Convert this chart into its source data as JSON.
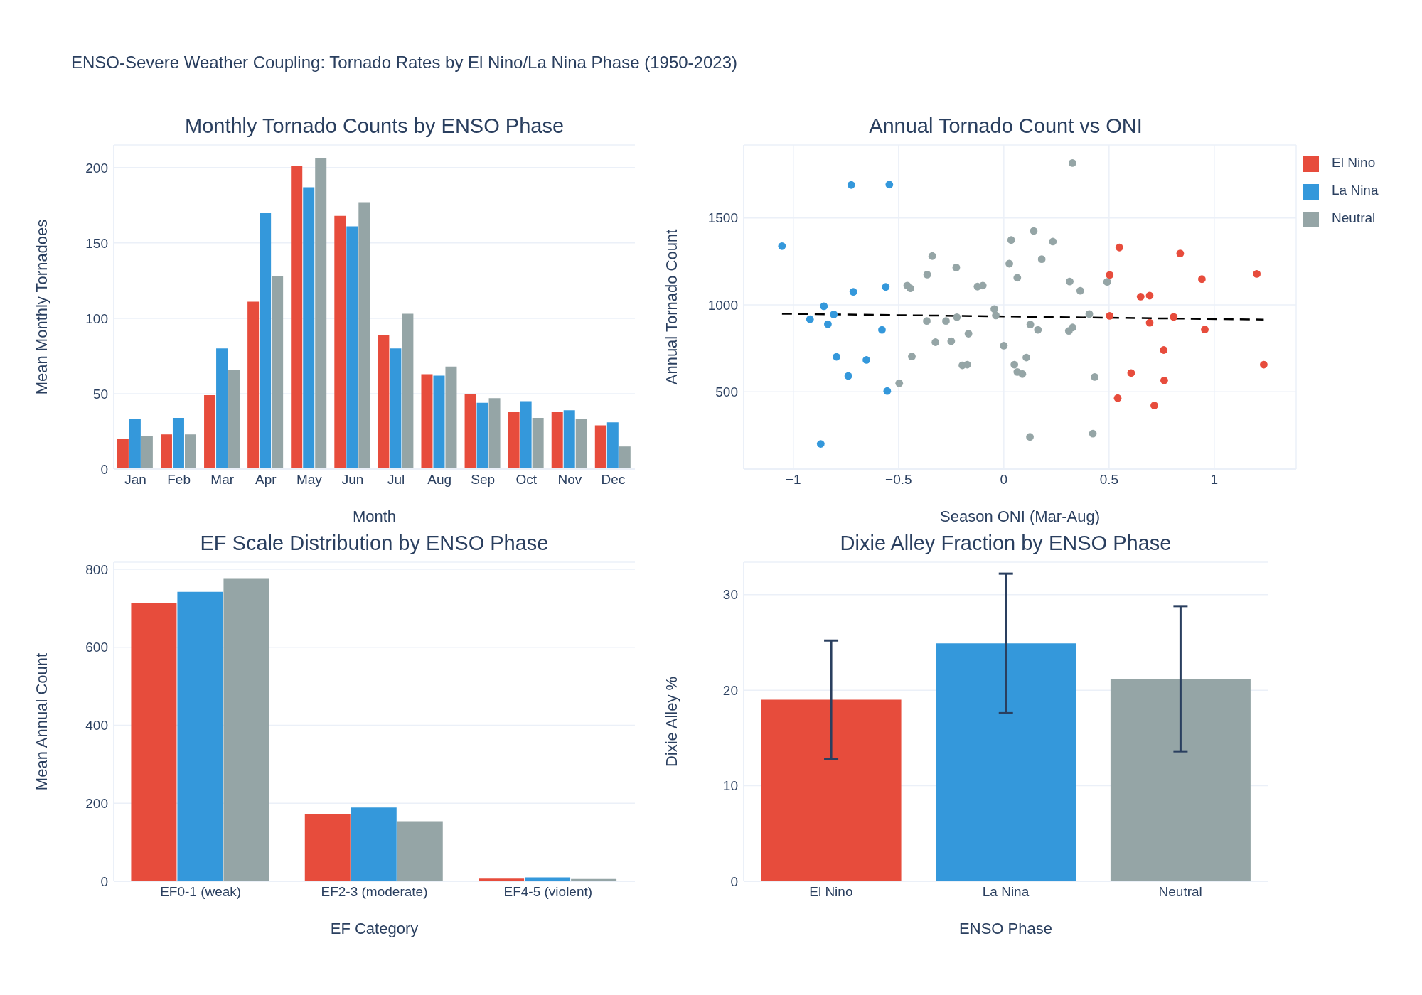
{
  "chart_data": [
    {
      "type": "bar",
      "title": "Monthly Tornado Counts by ENSO Phase",
      "annotations": [
        "ENSO-Severe Weather Coupling: Tornado Rates by El Nino/La Nina Phase (1950-2023)"
      ],
      "xlabel": "Month",
      "ylabel": "Mean Monthly Tornadoes",
      "categories": [
        "Jan",
        "Feb",
        "Mar",
        "Apr",
        "May",
        "Jun",
        "Jul",
        "Aug",
        "Sep",
        "Oct",
        "Nov",
        "Dec"
      ],
      "series": [
        {
          "color": "#e74c3c",
          "values": [
            20,
            23,
            49,
            111,
            201,
            168,
            89,
            63,
            50,
            38,
            38,
            29
          ]
        },
        {
          "color": "#3498db",
          "values": [
            33,
            34,
            80,
            170,
            187,
            161,
            80,
            62,
            44,
            45,
            39,
            31
          ]
        },
        {
          "color": "#95a5a6",
          "values": [
            22,
            23,
            66,
            128,
            206,
            177,
            103,
            68,
            47,
            34,
            33,
            15
          ]
        }
      ],
      "ylim": [
        0,
        215
      ],
      "yticks": [
        0,
        50,
        100,
        150,
        200
      ],
      "grid": "y"
    },
    {
      "type": "scatter",
      "title": "Annual Tornado Count vs ONI",
      "xlabel": "Season ONI (Mar-Aug)",
      "ylabel": "Annual Tornado Count",
      "marker": "circle",
      "legend": "right",
      "series": [
        {
          "name": "El Nino",
          "color": "#e74c3c",
          "x": [
            0.549,
            0.838,
            0.503,
            1.202,
            0.941,
            0.65,
            0.693,
            0.503,
            0.807,
            0.693,
            0.955,
            0.76,
            1.235,
            0.605,
            0.762,
            0.541,
            0.715
          ],
          "values": [
            1330,
            1296,
            1172,
            1178,
            1148,
            1047,
            1053,
            937,
            931,
            897,
            858,
            740,
            656,
            608,
            565,
            463,
            421
          ]
        },
        {
          "name": "La Nina",
          "color": "#3498db",
          "x": [
            -0.725,
            -0.544,
            -1.054,
            -0.715,
            -0.561,
            -0.855,
            -0.921,
            -0.836,
            -0.808,
            -0.579,
            -0.795,
            -0.653,
            -0.739,
            -0.554,
            -0.87
          ],
          "values": [
            1690,
            1692,
            1338,
            1075,
            1103,
            992,
            917,
            889,
            945,
            856,
            701,
            683,
            591,
            504,
            200
          ]
        },
        {
          "name": "Neutral",
          "color": "#95a5a6",
          "x": [
            0.326,
            0.035,
            0.142,
            0.233,
            -0.34,
            0.026,
            0.18,
            -0.226,
            -0.364,
            0.064,
            -0.459,
            -0.444,
            -0.125,
            -0.1,
            0.313,
            0.363,
            0.491,
            -0.045,
            -0.038,
            0.406,
            -0.366,
            -0.275,
            -0.223,
            -0.168,
            -0.325,
            -0.25,
            0,
            0.126,
            0.162,
            0.309,
            0.327,
            -0.437,
            0.107,
            0.05,
            -0.197,
            -0.174,
            0.064,
            0.088,
            0.432,
            -0.497,
            0.124,
            0.423
          ],
          "values": [
            1816,
            1373,
            1425,
            1364,
            1281,
            1237,
            1263,
            1215,
            1174,
            1156,
            1111,
            1095,
            1105,
            1111,
            1134,
            1081,
            1132,
            976,
            939,
            947,
            907,
            907,
            929,
            834,
            785,
            791,
            765,
            887,
            856,
            850,
            870,
            703,
            697,
            656,
            652,
            656,
            614,
            602,
            585,
            549,
            240,
            259
          ]
        },
        {
          "type": "line",
          "color": "#000000",
          "line_style": "dashed",
          "marker": "none",
          "x": [
            -1.054,
            1.235
          ],
          "values": [
            949,
            915
          ]
        }
      ],
      "xlim": [
        -1.236,
        1.389
      ],
      "xticks": [
        {
          "value": -1,
          "label": "−1"
        },
        {
          "value": -0.5,
          "label": "−0.5"
        },
        0,
        0.5,
        1
      ],
      "ylim": [
        55,
        1920
      ],
      "yticks": [
        500,
        1000,
        1500
      ],
      "grid": true
    },
    {
      "type": "bar",
      "title": "EF Scale Distribution by ENSO Phase",
      "xlabel": "EF Category",
      "ylabel": "Mean Annual Count",
      "categories": [
        "EF0-1 (weak)",
        "EF2-3 (moderate)",
        "EF4-5 (violent)"
      ],
      "series": [
        {
          "color": "#e74c3c",
          "values": [
            714,
            173,
            7
          ]
        },
        {
          "color": "#3498db",
          "values": [
            742,
            189,
            10
          ]
        },
        {
          "color": "#95a5a6",
          "values": [
            777,
            154,
            6
          ]
        }
      ],
      "ylim": [
        0,
        818
      ],
      "yticks": [
        0,
        200,
        400,
        600,
        800
      ],
      "grid": "y"
    },
    {
      "type": "bar",
      "title": "Dixie Alley Fraction by ENSO Phase",
      "xlabel": "ENSO Phase",
      "ylabel": "Dixie Alley %",
      "categories": [
        "El Nino",
        "La Nina",
        "Neutral"
      ],
      "values": [
        19.0,
        24.9,
        21.2
      ],
      "colors": [
        "#e74c3c",
        "#3498db",
        "#95a5a6"
      ],
      "errors": [
        6.2,
        7.3,
        7.6
      ],
      "ylim": [
        0,
        33.4
      ],
      "yticks": [
        0,
        10,
        20,
        30
      ],
      "grid": "y"
    }
  ]
}
